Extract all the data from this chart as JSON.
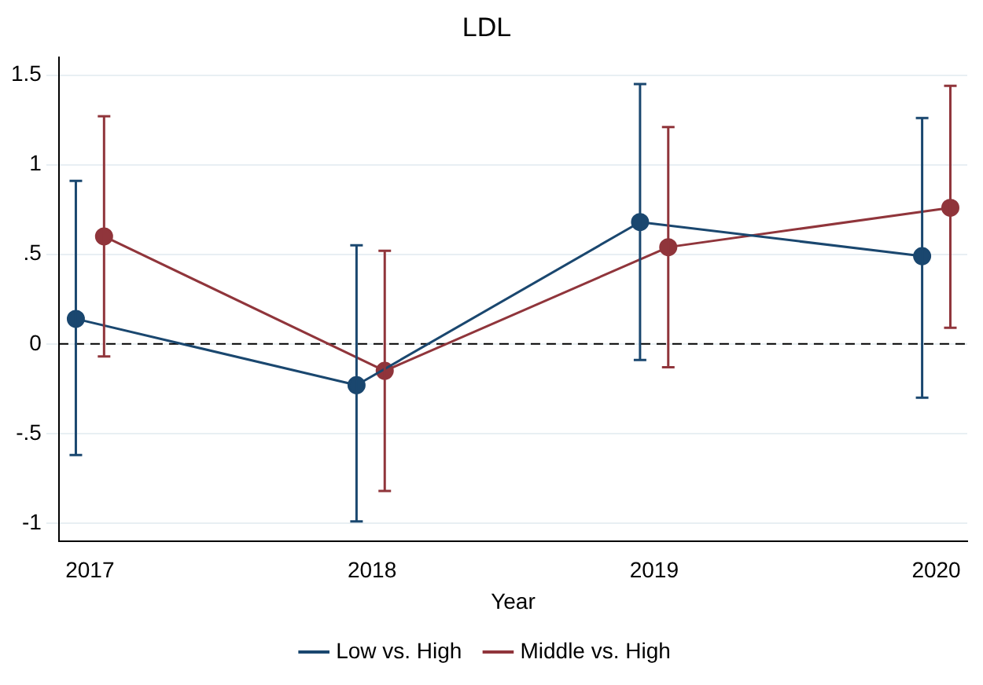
{
  "chart_data": {
    "type": "line",
    "title": "LDL",
    "xlabel": "Year",
    "xlim": [
      2016.89,
      2020.11
    ],
    "xticks": [
      2017,
      2018,
      2019,
      2020
    ],
    "ylim": [
      -1.1,
      1.6
    ],
    "yticks": [
      {
        "value": -1,
        "label": "-1"
      },
      {
        "value": -0.5,
        "label": "-.5"
      },
      0,
      {
        "value": 0.5,
        "label": ".5"
      },
      1,
      1.5
    ],
    "grid": "y",
    "legend": "bottom",
    "marker": "circle",
    "line_style": "solid",
    "ref_lines": [
      {
        "axis": "y",
        "value": 0,
        "color": "#000000",
        "line_style": "dashed"
      }
    ],
    "series": [
      {
        "name": "Low vs. High",
        "color": "#1a476f",
        "x": [
          2016.95,
          2017.945,
          2018.95,
          2019.95
        ],
        "values": [
          0.14,
          -0.23,
          0.68,
          0.49
        ],
        "errors": [
          [
            -0.62,
            0.91
          ],
          [
            -0.99,
            0.55
          ],
          [
            -0.09,
            1.45
          ],
          [
            -0.3,
            1.26
          ]
        ]
      },
      {
        "name": "Middle vs. High",
        "color": "#90353b",
        "x": [
          2017.05,
          2018.045,
          2019.05,
          2020.05
        ],
        "values": [
          0.6,
          -0.15,
          0.54,
          0.76
        ],
        "errors": [
          [
            -0.07,
            1.27
          ],
          [
            -0.82,
            0.52
          ],
          [
            -0.13,
            1.21
          ],
          [
            0.09,
            1.44
          ]
        ]
      }
    ]
  }
}
